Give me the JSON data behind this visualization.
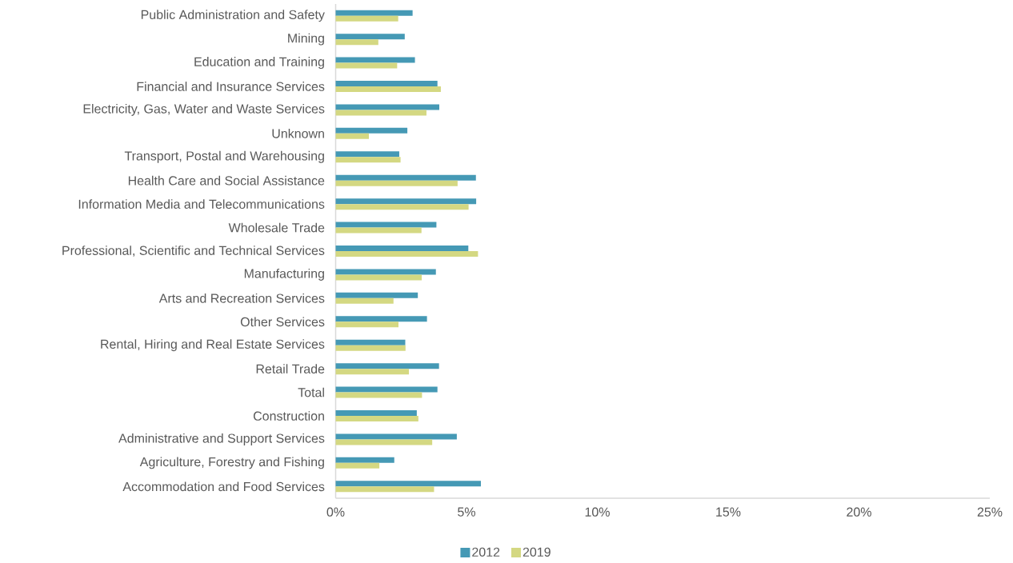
{
  "chart_data": {
    "type": "bar",
    "orientation": "horizontal",
    "categories": [
      "Public Administration and Safety",
      "Mining",
      "Education and Training",
      "Financial and Insurance Services",
      "Electricity, Gas, Water and Waste Services",
      "Unknown",
      "Transport, Postal and Warehousing",
      "Health Care and Social Assistance",
      "Information Media and Telecommunications",
      "Wholesale Trade",
      "Professional, Scientific and Technical Services",
      "Manufacturing",
      "Arts and Recreation Services",
      "Other Services",
      "Rental, Hiring and Real Estate Services",
      "Retail Trade",
      "Total",
      "Construction",
      "Administrative and Support Services",
      "Agriculture, Forestry and Fishing",
      "Accommodation and Food Services"
    ],
    "series": [
      {
        "name": "2012",
        "color": "#4599b5",
        "values": [
          2.94,
          2.64,
          3.03,
          3.89,
          3.96,
          2.74,
          2.43,
          5.36,
          5.37,
          3.85,
          5.07,
          3.83,
          3.14,
          3.49,
          2.66,
          3.95,
          3.89,
          3.1,
          4.63,
          2.24,
          5.55
        ]
      },
      {
        "name": "2019",
        "color": "#d4d882",
        "values": [
          2.39,
          1.63,
          2.35,
          4.02,
          3.47,
          1.27,
          2.48,
          4.66,
          5.08,
          3.28,
          5.44,
          3.29,
          2.21,
          2.4,
          2.67,
          2.8,
          3.3,
          3.16,
          3.69,
          1.67,
          3.76
        ]
      }
    ],
    "xlim": [
      0,
      25
    ],
    "xticks": [
      {
        "value": 0,
        "label": "0%"
      },
      {
        "value": 5,
        "label": "5%"
      },
      {
        "value": 10,
        "label": "10%"
      },
      {
        "value": 15,
        "label": "15%"
      },
      {
        "value": 20,
        "label": "20%"
      },
      {
        "value": 25,
        "label": "25%"
      }
    ],
    "legend": "bottom"
  }
}
